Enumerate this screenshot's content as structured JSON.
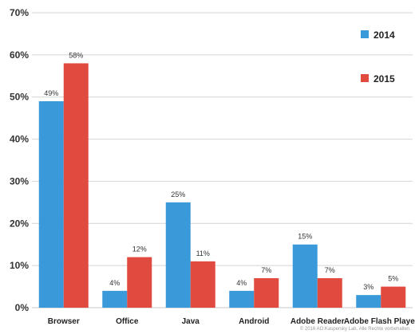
{
  "chart_data": {
    "type": "bar",
    "categories": [
      "Browser",
      "Office",
      "Java",
      "Android",
      "Adobe Reader",
      "Adobe Flash Player"
    ],
    "series": [
      {
        "name": "2014",
        "color": "#3a9ad9",
        "values": [
          49,
          4,
          25,
          4,
          15,
          3
        ],
        "labels": [
          "49%",
          "4%",
          "25%",
          "4%",
          "15%",
          "3%"
        ]
      },
      {
        "name": "2015",
        "color": "#e04a3f",
        "values": [
          58,
          12,
          11,
          7,
          7,
          5
        ],
        "labels": [
          "58%",
          "12%",
          "11%",
          "7%",
          "7%",
          "5%"
        ]
      }
    ],
    "ylim": [
      0,
      70
    ],
    "yticks": [
      0,
      10,
      20,
      30,
      40,
      50,
      60,
      70
    ],
    "ytick_labels": [
      "0%",
      "10%",
      "20%",
      "30%",
      "40%",
      "50%",
      "60%",
      "70%"
    ],
    "grid": true,
    "legend_position": "top-right",
    "title": "",
    "xlabel": "",
    "ylabel": ""
  },
  "footer": {
    "copyright": "© 2016 AO Kaspersky Lab. Alle Rechte vorbehalten."
  }
}
